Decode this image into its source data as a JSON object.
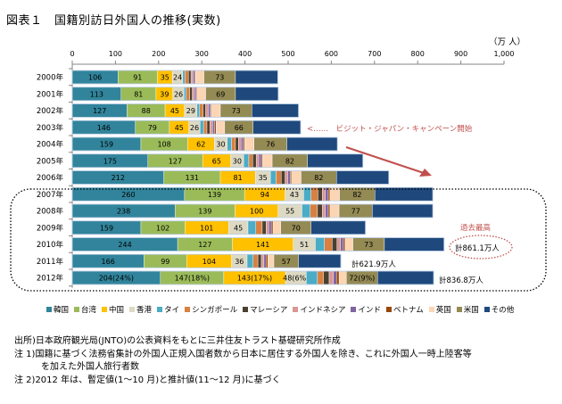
{
  "title": "図表１　国籍別訪日外国人の推移(実数)",
  "unit_label": "（万 人）",
  "chart_data": {
    "type": "bar",
    "orientation": "horizontal",
    "stacked": true,
    "title": "国籍別訪日外国人の推移(実数)",
    "xlabel": "（万 人）",
    "xlim": [
      0,
      1000
    ],
    "xticks": [
      "0",
      "100",
      "200",
      "300",
      "400",
      "500",
      "600",
      "700",
      "800",
      "900",
      "1,000"
    ],
    "xtick_values": [
      0,
      100,
      200,
      300,
      400,
      500,
      600,
      700,
      800,
      900,
      1000
    ],
    "grid": false,
    "legend_position": "bottom",
    "categories": [
      "2000年",
      "2001年",
      "2002年",
      "2003年",
      "2004年",
      "2005年",
      "2006年",
      "2007年",
      "2008年",
      "2009年",
      "2010年",
      "2011年",
      "2012年"
    ],
    "series": [
      {
        "name": "韓国",
        "color": "#31849b",
        "values": [
          106,
          113,
          127,
          146,
          159,
          175,
          212,
          260,
          238,
          159,
          244,
          166,
          204
        ],
        "labels": [
          "106",
          "113",
          "127",
          "146",
          "159",
          "175",
          "212",
          "260",
          "238",
          "159",
          "244",
          "166",
          "204(24%)"
        ]
      },
      {
        "name": "台湾",
        "color": "#9bbb59",
        "values": [
          91,
          81,
          88,
          79,
          108,
          127,
          131,
          139,
          139,
          102,
          127,
          99,
          147
        ],
        "labels": [
          "91",
          "81",
          "88",
          "79",
          "108",
          "127",
          "131",
          "139",
          "139",
          "102",
          "127",
          "99",
          "147(18%)"
        ]
      },
      {
        "name": "中国",
        "color": "#ffc000",
        "values": [
          35,
          39,
          45,
          45,
          62,
          65,
          81,
          94,
          100,
          101,
          141,
          104,
          143
        ],
        "labels": [
          "35",
          "39",
          "45",
          "45",
          "62",
          "65",
          "81",
          "94",
          "100",
          "101",
          "141",
          "104",
          "143(17%)"
        ]
      },
      {
        "name": "香港",
        "color": "#ddd9c3",
        "values": [
          24,
          26,
          29,
          26,
          30,
          30,
          35,
          43,
          55,
          45,
          51,
          36,
          48
        ],
        "labels": [
          "24",
          "26",
          "29",
          "26",
          "30",
          "30",
          "35",
          "43",
          "55",
          "45",
          "51",
          "36",
          "48(6%)"
        ]
      },
      {
        "name": "タイ",
        "color": "#4bacc6",
        "values": [
          5,
          5,
          6,
          8,
          10,
          12,
          13,
          17,
          19,
          18,
          21,
          14,
          26
        ],
        "labels": []
      },
      {
        "name": "シンガポール",
        "color": "#d98040",
        "values": [
          8,
          8,
          8,
          8,
          9,
          9,
          12,
          16,
          17,
          15,
          18,
          11,
          14
        ],
        "labels": []
      },
      {
        "name": "マレーシア",
        "color": "#4a4030",
        "values": [
          6,
          6,
          6,
          7,
          7,
          8,
          9,
          10,
          11,
          9,
          11,
          8,
          13
        ],
        "labels": []
      },
      {
        "name": "インドネシア",
        "color": "#d99694",
        "values": [
          5,
          5,
          6,
          6,
          6,
          6,
          6,
          7,
          7,
          6,
          8,
          6,
          10
        ],
        "labels": []
      },
      {
        "name": "インド",
        "color": "#8064a2",
        "values": [
          4,
          4,
          5,
          5,
          5,
          6,
          6,
          7,
          7,
          6,
          7,
          5,
          7
        ],
        "labels": []
      },
      {
        "name": "ベトナム",
        "color": "#984807",
        "values": [
          2,
          2,
          2,
          3,
          3,
          3,
          3,
          4,
          4,
          4,
          4,
          4,
          6
        ],
        "labels": []
      },
      {
        "name": "英国",
        "color": "#fcd5b5",
        "values": [
          19,
          20,
          21,
          20,
          22,
          22,
          22,
          22,
          21,
          18,
          18,
          14,
          17
        ],
        "labels": []
      },
      {
        "name": "米国",
        "color": "#948a54",
        "values": [
          73,
          69,
          73,
          66,
          76,
          82,
          82,
          82,
          77,
          70,
          73,
          57,
          72
        ],
        "labels": [
          "73",
          "69",
          "73",
          "66",
          "76",
          "82",
          "82",
          "82",
          "77",
          "70",
          "73",
          "57",
          "72(9%)"
        ]
      },
      {
        "name": "その他",
        "color": "#1f497d",
        "values": [
          98,
          99,
          108,
          110,
          117,
          128,
          121,
          134,
          140,
          126,
          138,
          98,
          130
        ],
        "labels": []
      }
    ],
    "annotations": [
      {
        "text": "<……　ビジット・ジャパン・キャンペーン開始",
        "color": "#c0504d",
        "row": "2003年"
      },
      {
        "text": "過去最高",
        "color": "#c0504d",
        "row": "2010年"
      },
      {
        "text": "計861.1万人",
        "row": "2010年"
      },
      {
        "text": "計621.9万人",
        "row": "2011年"
      },
      {
        "text": "計836.8万人",
        "row": "2012年"
      }
    ]
  },
  "notes": [
    "出所)日本政府観光局(JNTO)の公表資料をもとに三井住友トラスト基礎研究所作成",
    "注 1)国籍に基づく法務省集計の外国人正規入国者数から日本に居住する外国人を除き、これに外国人一時上陸客等",
    "を加えた外国人旅行者数",
    "注 2)2012 年は、暫定値(1～10 月)と推計値(11～12 月)に基づく"
  ]
}
